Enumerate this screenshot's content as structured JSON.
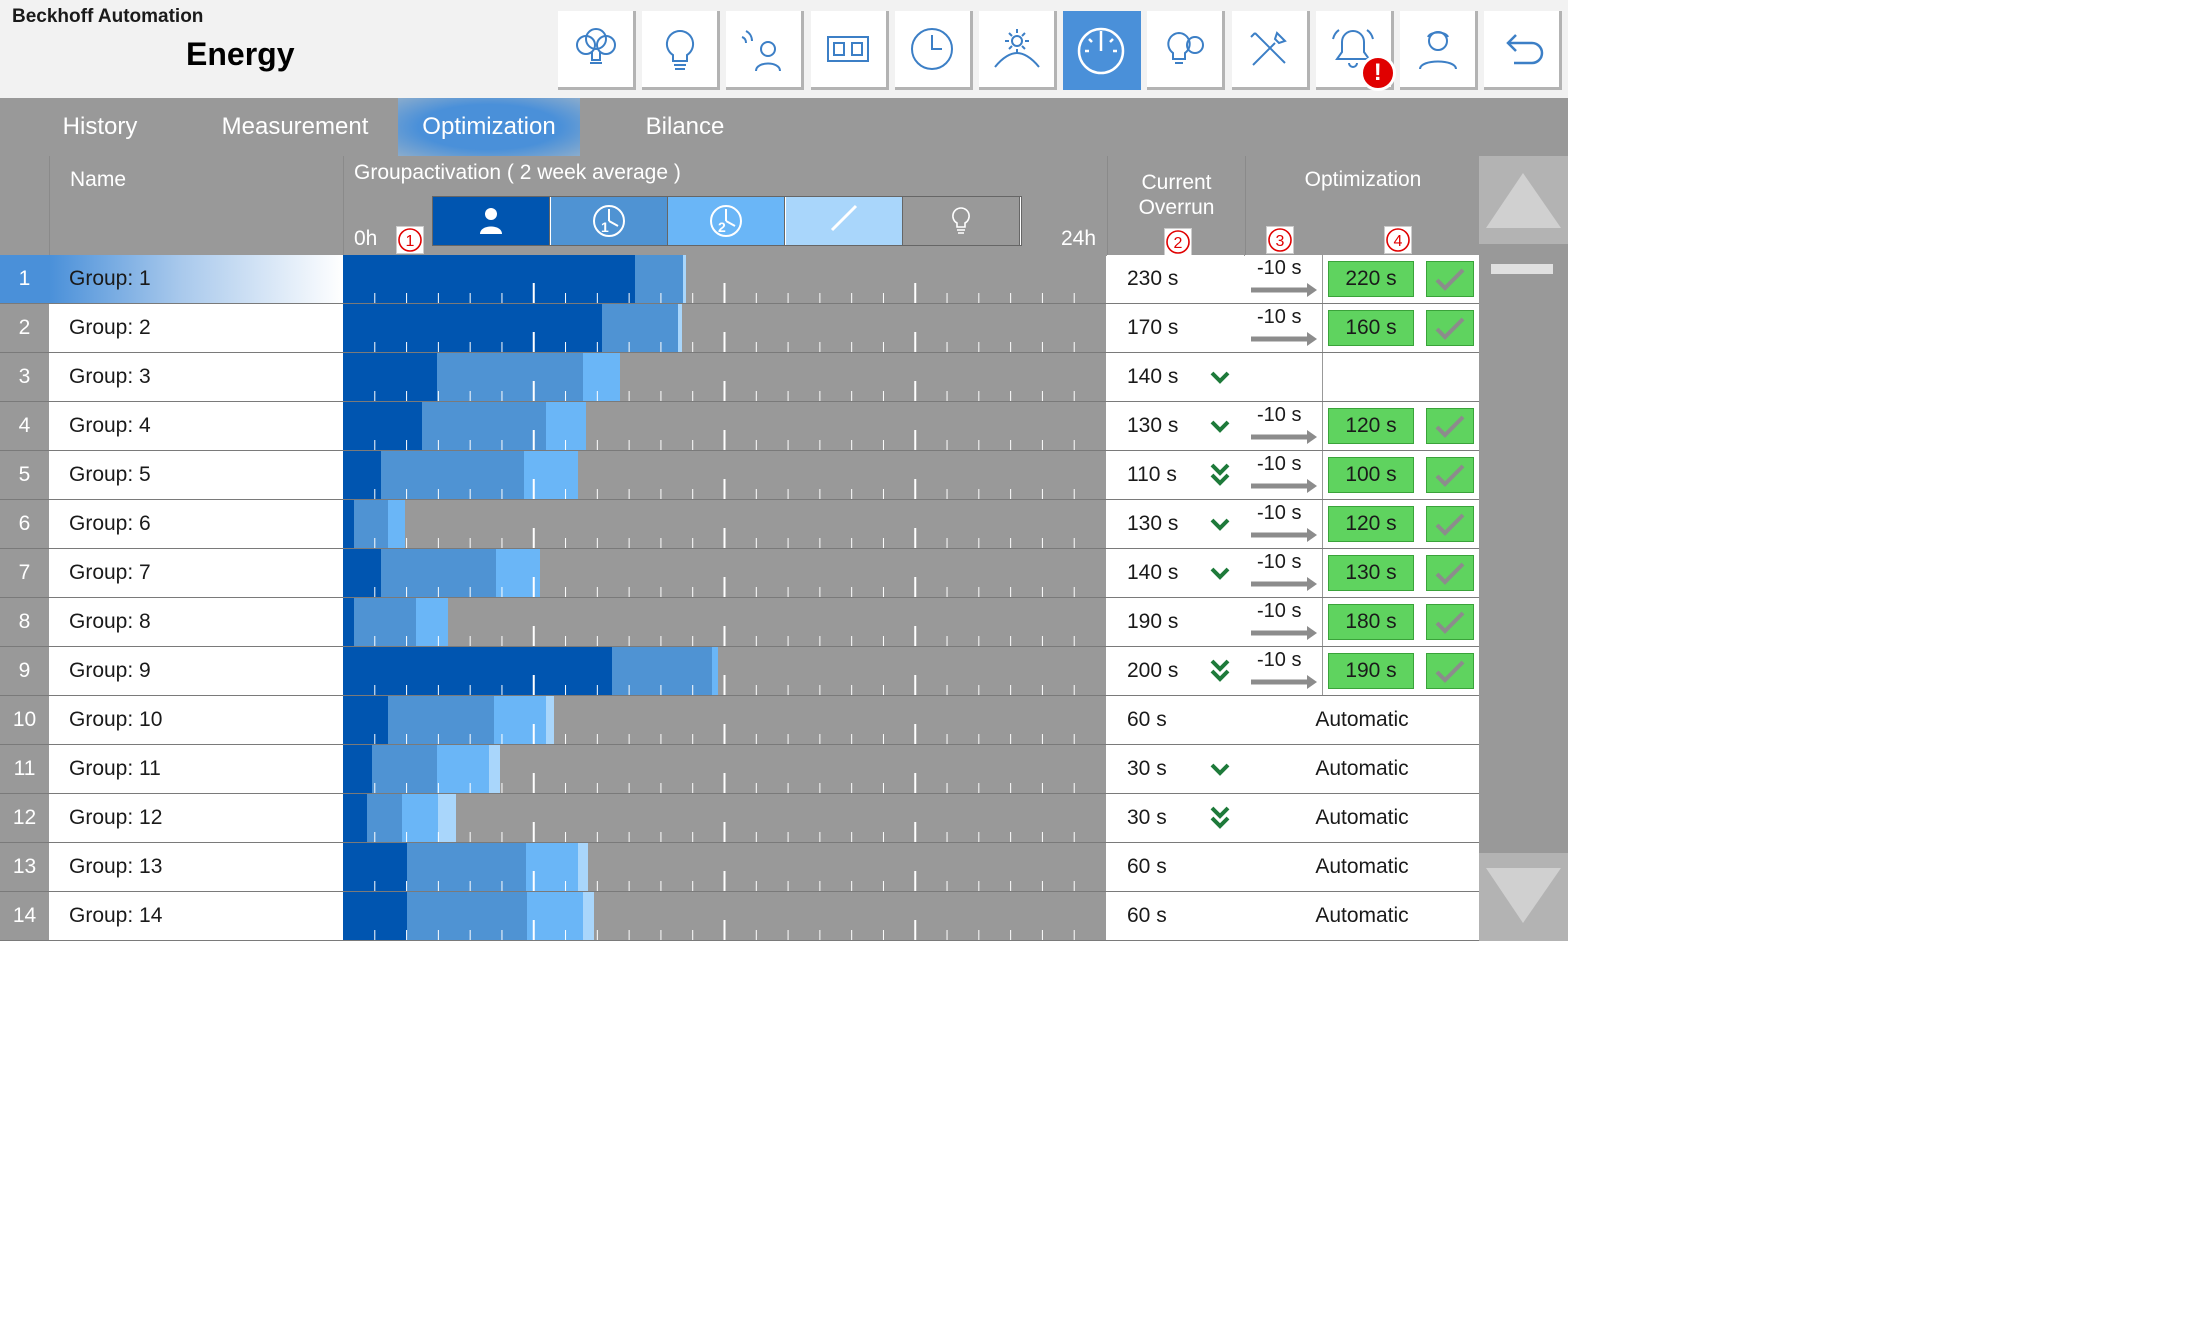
{
  "header": {
    "company": "Beckhoff Automation",
    "title": "Energy"
  },
  "toolbar": [
    {
      "icon": "bulb-group-icon",
      "active": false
    },
    {
      "icon": "bulb-icon",
      "active": false
    },
    {
      "icon": "person-presence-icon",
      "active": false
    },
    {
      "icon": "switch-panel-icon",
      "active": false
    },
    {
      "icon": "clock-icon",
      "active": false
    },
    {
      "icon": "daylight-icon",
      "active": false
    },
    {
      "icon": "energy-gauge-icon",
      "active": true
    },
    {
      "icon": "bulb-gear-icon",
      "active": false
    },
    {
      "icon": "tools-icon",
      "active": false
    },
    {
      "icon": "alarm-bell-icon",
      "active": false,
      "alert": "!"
    },
    {
      "icon": "user-icon",
      "active": false
    },
    {
      "icon": "back-arrow-icon",
      "active": false
    }
  ],
  "tabs": [
    {
      "label": "History",
      "active": false
    },
    {
      "label": "Measurement",
      "active": false
    },
    {
      "label": "Optimization",
      "active": true
    },
    {
      "label": "Bilance",
      "active": false
    }
  ],
  "columns": {
    "name": "Name",
    "group_activation": "Groupactivation ( 2 week average )",
    "start": "0h",
    "end": "24h",
    "overrun_line1": "Current",
    "overrun_line2": "Overrun",
    "optimization": "Optimization",
    "markers": [
      "1",
      "2",
      "3",
      "4"
    ]
  },
  "legend": [
    {
      "icon": "person-icon",
      "color": "#0055b0"
    },
    {
      "icon": "clock-1-icon",
      "label": "1",
      "color": "#4f93d3"
    },
    {
      "icon": "clock-2-icon",
      "label": "2",
      "color": "#6ab6f7"
    },
    {
      "icon": "link-icon",
      "color": "#a9d6fb"
    },
    {
      "icon": "bulb-off-icon",
      "color": "#999999"
    }
  ],
  "colors": {
    "presence": "#0055b0",
    "time1": "#4f93d3",
    "time2": "#6ab6f7",
    "link": "#a9d6fb",
    "off": "#999999",
    "accent": "#4a90d9",
    "ok": "#5fd35f",
    "chevron": "#1e7a3a"
  },
  "rows": [
    {
      "num": "1",
      "name": "Group: 1",
      "selected": true,
      "activation_hours": [
        9.2,
        1.5,
        0,
        0.1
      ],
      "overrun": "230 s",
      "trend": "none",
      "opt": {
        "mode": "manual",
        "delta": "-10 s",
        "target": "220 s"
      }
    },
    {
      "num": "2",
      "name": "Group: 2",
      "selected": false,
      "activation_hours": [
        8.15,
        2.4,
        0,
        0.1
      ],
      "overrun": "170 s",
      "trend": "none",
      "opt": {
        "mode": "manual",
        "delta": "-10 s",
        "target": "160 s"
      }
    },
    {
      "num": "3",
      "name": "Group: 3",
      "selected": false,
      "activation_hours": [
        2.95,
        4.6,
        1.15,
        0
      ],
      "overrun": "140 s",
      "trend": "down",
      "opt": {
        "mode": "none"
      }
    },
    {
      "num": "4",
      "name": "Group: 4",
      "selected": false,
      "activation_hours": [
        2.5,
        3.9,
        1.25,
        0
      ],
      "overrun": "130 s",
      "trend": "down",
      "opt": {
        "mode": "manual",
        "delta": "-10 s",
        "target": "120 s"
      }
    },
    {
      "num": "5",
      "name": "Group: 5",
      "selected": false,
      "activation_hours": [
        1.2,
        4.5,
        1.7,
        0
      ],
      "overrun": "110 s",
      "trend": "double-down",
      "opt": {
        "mode": "manual",
        "delta": "-10 s",
        "target": "100 s"
      }
    },
    {
      "num": "6",
      "name": "Group: 6",
      "selected": false,
      "activation_hours": [
        0.35,
        1.05,
        0.55,
        0
      ],
      "overrun": "130 s",
      "trend": "down",
      "opt": {
        "mode": "manual",
        "delta": "-10 s",
        "target": "120 s"
      }
    },
    {
      "num": "7",
      "name": "Group: 7",
      "selected": false,
      "activation_hours": [
        1.2,
        3.6,
        1.4,
        0
      ],
      "overrun": "140 s",
      "trend": "down",
      "opt": {
        "mode": "manual",
        "delta": "-10 s",
        "target": "130 s"
      }
    },
    {
      "num": "8",
      "name": "Group: 8",
      "selected": false,
      "activation_hours": [
        0.35,
        1.95,
        1.0,
        0
      ],
      "overrun": "190 s",
      "trend": "none",
      "opt": {
        "mode": "manual",
        "delta": "-10 s",
        "target": "180 s"
      }
    },
    {
      "num": "9",
      "name": "Group: 9",
      "selected": false,
      "activation_hours": [
        8.45,
        3.15,
        0.2,
        0
      ],
      "overrun": "200 s",
      "trend": "double-down",
      "opt": {
        "mode": "manual",
        "delta": "-10 s",
        "target": "190 s"
      }
    },
    {
      "num": "10",
      "name": "Group: 10",
      "selected": false,
      "activation_hours": [
        1.4,
        3.35,
        1.65,
        0.25
      ],
      "overrun": "60 s",
      "trend": "none",
      "opt": {
        "mode": "auto",
        "label": "Automatic"
      }
    },
    {
      "num": "11",
      "name": "Group: 11",
      "selected": false,
      "activation_hours": [
        0.9,
        2.05,
        1.65,
        0.35
      ],
      "overrun": "30 s",
      "trend": "down",
      "opt": {
        "mode": "auto",
        "label": "Automatic"
      }
    },
    {
      "num": "12",
      "name": "Group: 12",
      "selected": false,
      "activation_hours": [
        0.75,
        1.1,
        1.15,
        0.55
      ],
      "overrun": "30 s",
      "trend": "double-down",
      "opt": {
        "mode": "auto",
        "label": "Automatic"
      }
    },
    {
      "num": "13",
      "name": "Group: 13",
      "selected": false,
      "activation_hours": [
        2.0,
        3.75,
        1.65,
        0.3
      ],
      "overrun": "60 s",
      "trend": "none",
      "opt": {
        "mode": "auto",
        "label": "Automatic"
      }
    },
    {
      "num": "14",
      "name": "Group: 14",
      "selected": false,
      "activation_hours": [
        2.0,
        3.8,
        1.75,
        0.35
      ],
      "overrun": "60 s",
      "trend": "none",
      "opt": {
        "mode": "auto",
        "label": "Automatic"
      }
    }
  ]
}
